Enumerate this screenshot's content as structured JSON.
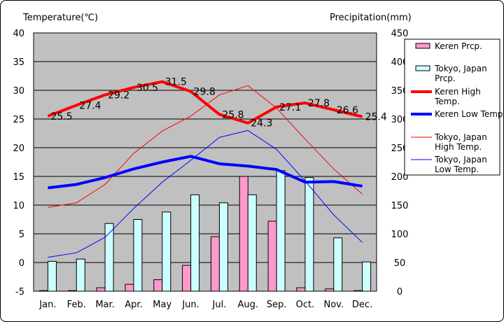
{
  "chart_data": {
    "type": "bar",
    "categories": [
      "Jan.",
      "Feb.",
      "Mar.",
      "Apr.",
      "May",
      "Jun.",
      "Jul.",
      "Aug.",
      "Sep.",
      "Oct.",
      "Nov.",
      "Dec."
    ],
    "left_axis": {
      "label": "Temperature(℃)",
      "min": -5,
      "max": 40,
      "ticks": [
        -5,
        0,
        5,
        10,
        15,
        20,
        25,
        30,
        35,
        40
      ]
    },
    "right_axis": {
      "label": "Precipitation(mm)",
      "min": 0,
      "max": 450,
      "ticks": [
        0,
        50,
        100,
        150,
        200,
        250,
        300,
        350,
        400,
        450
      ]
    },
    "grid": true,
    "legend_position": "right",
    "series": [
      {
        "name": "Keren Prcp.",
        "kind": "bar",
        "axis": "right",
        "color": "#ff99cc",
        "values": [
          1,
          1,
          6,
          12,
          20,
          45,
          95,
          200,
          122,
          6,
          4,
          1
        ]
      },
      {
        "name": "Tokyo, Japan Prcp.",
        "kind": "bar",
        "axis": "right",
        "color": "#ccffff",
        "values": [
          52,
          56,
          118,
          125,
          138,
          168,
          154,
          168,
          210,
          198,
          93,
          51
        ]
      },
      {
        "name": "Keren High Temp.",
        "kind": "line",
        "axis": "left",
        "color": "#ff0000",
        "width": 4,
        "values": [
          25.5,
          27.4,
          29.2,
          30.5,
          31.5,
          29.8,
          25.8,
          24.3,
          27.1,
          27.8,
          26.6,
          25.4
        ],
        "labels": [
          "25.5",
          "27.4",
          "29.2",
          "30.5",
          "31.5",
          "29.8",
          "25.8",
          "24.3",
          "27.1",
          "27.8",
          "26.6",
          "25.4"
        ]
      },
      {
        "name": "Keren Low Temp.",
        "kind": "line",
        "axis": "left",
        "color": "#0000ff",
        "width": 4,
        "values": [
          13.0,
          13.6,
          14.8,
          16.3,
          17.5,
          18.5,
          17.2,
          16.8,
          16.2,
          14.0,
          14.1,
          13.3
        ]
      },
      {
        "name": "Tokyo, Japan High Temp.",
        "kind": "line",
        "axis": "left",
        "color": "#ff0000",
        "width": 1,
        "values": [
          9.6,
          10.4,
          13.6,
          19.0,
          22.9,
          25.5,
          29.2,
          30.8,
          26.9,
          21.5,
          16.3,
          11.9
        ]
      },
      {
        "name": "Tokyo, Japan Low Temp.",
        "kind": "line",
        "axis": "left",
        "color": "#0000ff",
        "width": 1,
        "values": [
          0.9,
          1.7,
          4.4,
          9.4,
          14.0,
          17.8,
          21.8,
          23.0,
          19.7,
          14.2,
          8.3,
          3.5
        ]
      }
    ],
    "legend": [
      {
        "label": "Keren Prcp.",
        "marker": "box",
        "color": "#ff99cc"
      },
      {
        "label": "Tokyo, Japan Prcp.",
        "marker": "box",
        "color": "#ccffff"
      },
      {
        "label": "Keren High Temp.",
        "marker": "line",
        "color": "#ff0000",
        "width": 4
      },
      {
        "label": "Keren Low Temp.",
        "marker": "line",
        "color": "#0000ff",
        "width": 4
      },
      {
        "label": "Tokyo, Japan High Temp.",
        "marker": "line",
        "color": "#ff0000",
        "width": 1
      },
      {
        "label": "Tokyo, Japan Low Temp.",
        "marker": "line",
        "color": "#0000ff",
        "width": 1
      }
    ],
    "colors": {
      "plot_background": "#c0c0c0",
      "gridline": "#000000",
      "frame": "#000000"
    }
  }
}
